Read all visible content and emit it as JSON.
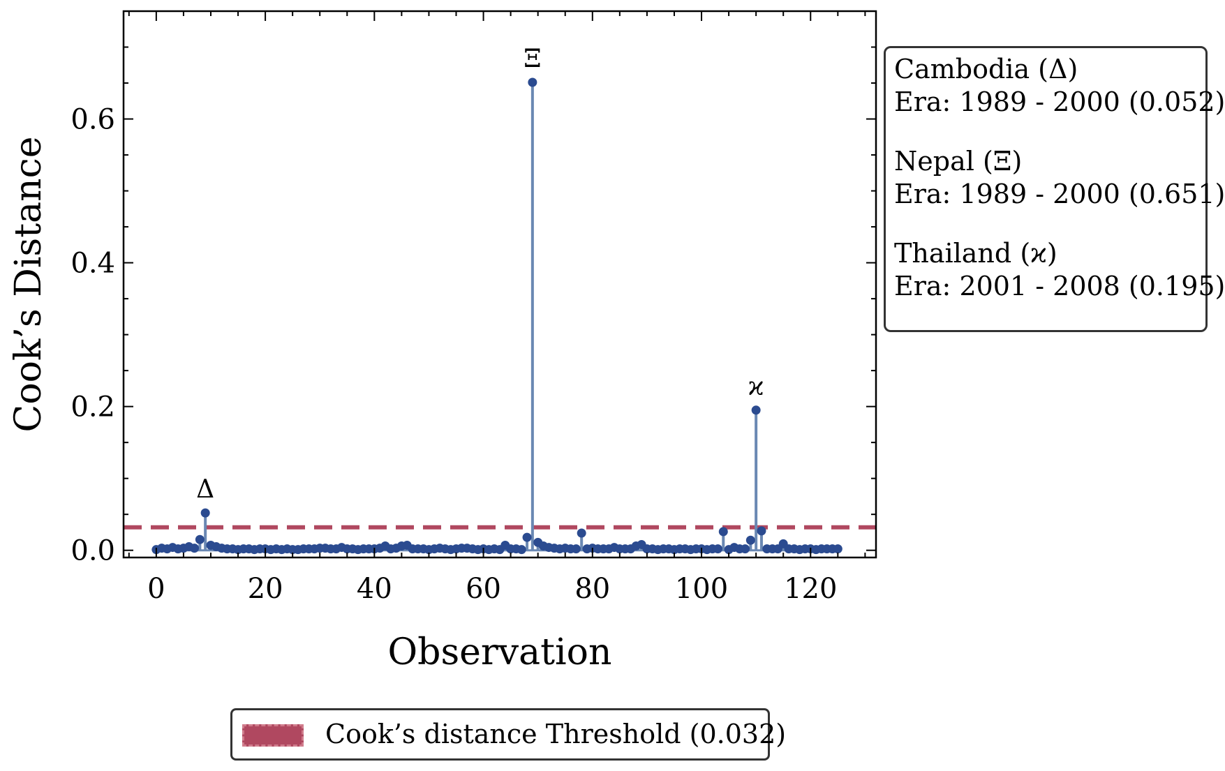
{
  "chart_data": {
    "type": "stem",
    "xlabel": "Observation",
    "ylabel": "Cook’s Distance",
    "xlim": [
      -6,
      132
    ],
    "ylim": [
      -0.01,
      0.75
    ],
    "xticks": [
      0,
      20,
      40,
      60,
      80,
      100,
      120
    ],
    "xtick_labels": [
      "0",
      "20",
      "40",
      "60",
      "80",
      "100",
      "120"
    ],
    "yticks": [
      0.0,
      0.2,
      0.4,
      0.6
    ],
    "ytick_labels": [
      "0.0",
      "0.2",
      "0.4",
      "0.6"
    ],
    "threshold": 0.032,
    "colors": {
      "stem": "#6a88b3",
      "marker": "#2b4b90",
      "threshold": "#b04860",
      "axes": "#000000"
    },
    "values": [
      0.001,
      0.003,
      0.002,
      0.004,
      0.002,
      0.003,
      0.005,
      0.003,
      0.015,
      0.052,
      0.007,
      0.005,
      0.003,
      0.002,
      0.002,
      0.001,
      0.002,
      0.002,
      0.001,
      0.002,
      0.002,
      0.001,
      0.002,
      0.001,
      0.002,
      0.001,
      0.001,
      0.002,
      0.002,
      0.002,
      0.003,
      0.003,
      0.002,
      0.002,
      0.004,
      0.002,
      0.002,
      0.001,
      0.002,
      0.002,
      0.002,
      0.003,
      0.006,
      0.002,
      0.003,
      0.006,
      0.007,
      0.002,
      0.002,
      0.002,
      0.001,
      0.002,
      0.003,
      0.002,
      0.001,
      0.002,
      0.003,
      0.003,
      0.002,
      0.001,
      0.002,
      0.001,
      0.002,
      0.001,
      0.007,
      0.002,
      0.002,
      0.001,
      0.018,
      0.651,
      0.011,
      0.006,
      0.004,
      0.003,
      0.002,
      0.003,
      0.002,
      0.002,
      0.024,
      0.002,
      0.003,
      0.002,
      0.002,
      0.002,
      0.004,
      0.002,
      0.002,
      0.002,
      0.006,
      0.008,
      0.002,
      0.002,
      0.001,
      0.002,
      0.002,
      0.001,
      0.002,
      0.002,
      0.001,
      0.002,
      0.002,
      0.001,
      0.002,
      0.002,
      0.026,
      0.001,
      0.004,
      0.002,
      0.002,
      0.014,
      0.195,
      0.027,
      0.002,
      0.002,
      0.002,
      0.009,
      0.002,
      0.002,
      0.001,
      0.002,
      0.002,
      0.001,
      0.002,
      0.002,
      0.002,
      0.002
    ],
    "annotations": [
      {
        "index": 9,
        "symbol": "Δ"
      },
      {
        "index": 69,
        "symbol": "Ξ"
      },
      {
        "index": 110,
        "symbol": "ϰ"
      }
    ],
    "info_box": [
      "Cambodia (Δ)",
      "Era: 1989 - 2000 (0.052)",
      "Nepal (Ξ)",
      "Era: 1989 - 2000 (0.651)",
      "Thailand (ϰ)",
      "Era: 2001 - 2008 (0.195)"
    ],
    "legend": {
      "label": "Cook’s distance Threshold (0.032)",
      "position": "bottom-center"
    }
  }
}
